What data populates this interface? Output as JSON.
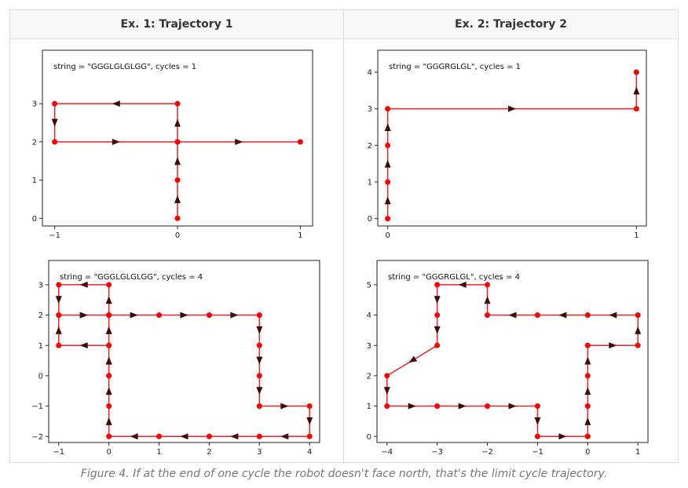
{
  "headers": [
    "Ex. 1: Trajectory 1",
    "Ex. 2: Trajectory 2"
  ],
  "caption": "Figure 4. If at the end of one cycle the robot doesn't face north, that's the limit cycle trajectory.",
  "colors": {
    "line": "#ee2222",
    "point": "#ff0000",
    "arrow": "#3a0c0c",
    "frame": "#222222"
  },
  "chart_data": [
    {
      "type": "line",
      "annotation": "string = \"GGGLGLGLGG\", cycles = 1",
      "xlim": [
        -1.1,
        1.1
      ],
      "ylim": [
        -0.2,
        4.4
      ],
      "xticks": [
        -1,
        0,
        1
      ],
      "yticks": [
        0,
        1,
        2,
        3
      ],
      "grid": false,
      "series": [
        {
          "x": [
            0,
            0,
            0,
            0,
            -1,
            -1,
            0,
            1
          ],
          "y": [
            0,
            1,
            2,
            3,
            3,
            2,
            2,
            2
          ]
        }
      ]
    },
    {
      "type": "line",
      "annotation": "string = \"GGGRGLGL\", cycles = 1",
      "xlim": [
        -0.04,
        1.04
      ],
      "ylim": [
        -0.2,
        4.6
      ],
      "xticks": [
        0,
        1
      ],
      "yticks": [
        0,
        1,
        2,
        3,
        4
      ],
      "grid": false,
      "series": [
        {
          "x": [
            0,
            0,
            0,
            0,
            1,
            1
          ],
          "y": [
            0,
            1,
            2,
            3,
            3,
            4
          ]
        }
      ]
    },
    {
      "type": "line",
      "annotation": "string = \"GGGLGLGLGG\", cycles = 4",
      "xlim": [
        -1.2,
        4.2
      ],
      "ylim": [
        -2.2,
        3.8
      ],
      "xticks": [
        -1,
        0,
        1,
        2,
        3,
        4
      ],
      "yticks": [
        -2,
        -1,
        0,
        1,
        2,
        3
      ],
      "grid": false,
      "series": [
        {
          "x": [
            0,
            0,
            0,
            0,
            -1,
            -1,
            0,
            1,
            2,
            3,
            3,
            3,
            3,
            4,
            4,
            3,
            2,
            1,
            0,
            0,
            0,
            0,
            -1,
            -1,
            0
          ],
          "y": [
            0,
            1,
            2,
            3,
            3,
            2,
            2,
            2,
            2,
            2,
            1,
            0,
            -1,
            -1,
            -2,
            -2,
            -2,
            -2,
            -2,
            -1,
            0,
            1,
            1,
            2,
            2
          ]
        }
      ]
    },
    {
      "type": "line",
      "annotation": "string = \"GGGRGLGL\", cycles = 4",
      "xlim": [
        -4.2,
        1.2
      ],
      "ylim": [
        -0.2,
        5.8
      ],
      "xticks": [
        -4,
        -3,
        -2,
        -1,
        0,
        1
      ],
      "yticks": [
        0,
        1,
        2,
        3,
        4,
        5
      ],
      "grid": false,
      "series": [
        {
          "x": [
            0,
            0,
            0,
            0,
            1,
            1,
            0,
            -1,
            -2,
            -2,
            -3,
            -3,
            -3,
            -4,
            -4,
            -3,
            -2,
            -1,
            -1,
            0
          ],
          "y": [
            0,
            1,
            2,
            3,
            3,
            4,
            4,
            4,
            4,
            5,
            5,
            4,
            3,
            2,
            1,
            1,
            1,
            1,
            0,
            0
          ]
        }
      ]
    }
  ]
}
